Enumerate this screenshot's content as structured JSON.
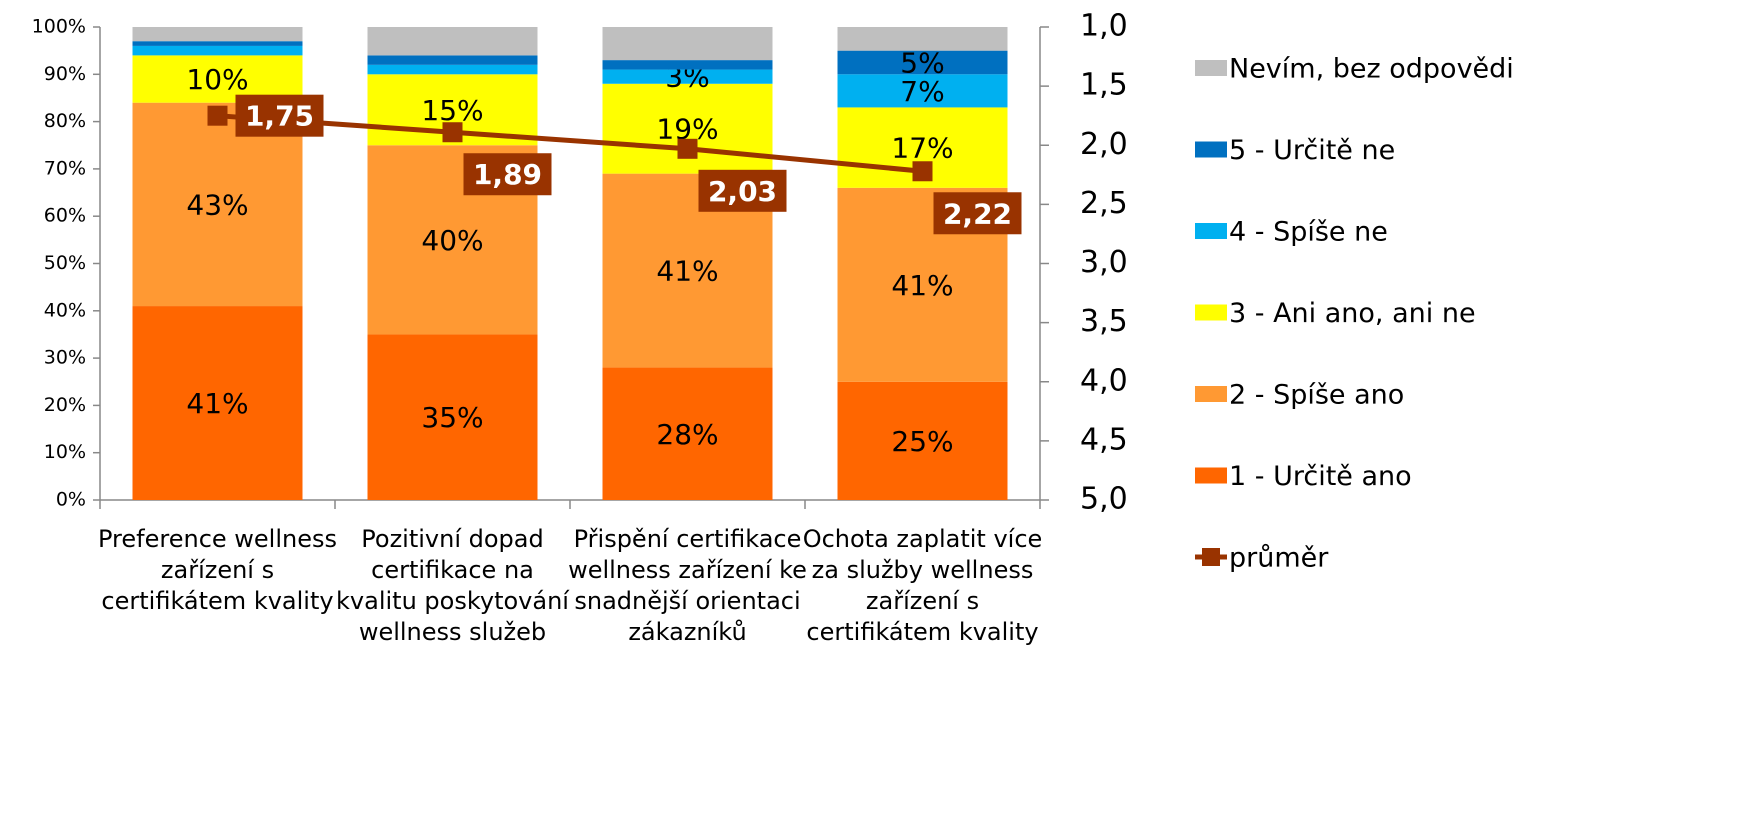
{
  "chart_data": {
    "type": "bar",
    "stacked": true,
    "categories": [
      "Preference wellness zařízení s certifikátem kvality",
      "Pozitivní dopad certifikace na kvalitu poskytování wellness služeb",
      "Přispění certifikace wellness zařízení ke snadnější orientaci zákazníků",
      "Ochota zaplatit více za služby wellness zařízení s certifikátem kvality"
    ],
    "series": [
      {
        "name": "1 - Určitě ano",
        "color": "#ff6600",
        "values": [
          41,
          35,
          28,
          25
        ],
        "value_labels": [
          "41%",
          "35%",
          "28%",
          "25%"
        ]
      },
      {
        "name": "2 - Spíše ano",
        "color": "#ff9933",
        "values": [
          43,
          40,
          41,
          41
        ],
        "value_labels": [
          "43%",
          "40%",
          "41%",
          "41%"
        ]
      },
      {
        "name": "3 - Ani ano, ani ne",
        "color": "#ffff00",
        "values": [
          10,
          15,
          19,
          17
        ],
        "value_labels": [
          "10%",
          "15%",
          "19%",
          "17%"
        ]
      },
      {
        "name": "4 - Spíše ne",
        "color": "#00b0f0",
        "values": [
          2,
          2,
          3,
          7
        ],
        "value_labels": [
          null,
          null,
          "3%",
          "7%"
        ]
      },
      {
        "name": "5 - Určitě ne",
        "color": "#0070c0",
        "values": [
          1,
          2,
          2,
          5
        ],
        "value_labels": [
          null,
          null,
          null,
          "5%"
        ]
      },
      {
        "name": "Nevím, bez odpovědi",
        "color": "#bfbfbf",
        "values": [
          3,
          6,
          7,
          5
        ]
      },
      {
        "name": "průměr",
        "type": "line",
        "axis": "y2",
        "color": "#993300",
        "values": [
          1.75,
          1.89,
          2.03,
          2.22
        ],
        "value_labels": [
          "1,75",
          "1,89",
          "2,03",
          "2,22"
        ]
      }
    ],
    "ylim": [
      0,
      100
    ],
    "yticks": [
      {
        "value": 0,
        "label": "0%"
      },
      {
        "value": 10,
        "label": "10%"
      },
      {
        "value": 20,
        "label": "20%"
      },
      {
        "value": 30,
        "label": "30%"
      },
      {
        "value": 40,
        "label": "40%"
      },
      {
        "value": 50,
        "label": "50%"
      },
      {
        "value": 60,
        "label": "60%"
      },
      {
        "value": 70,
        "label": "70%"
      },
      {
        "value": 80,
        "label": "80%"
      },
      {
        "value": 90,
        "label": "90%"
      },
      {
        "value": 100,
        "label": "100%"
      }
    ],
    "y2lim": [
      1,
      5
    ],
    "y2_inverted": true,
    "y2ticks": [
      {
        "value": 1,
        "label": "1,0"
      },
      {
        "value": 1.5,
        "label": "1,5"
      },
      {
        "value": 2,
        "label": "2,0"
      },
      {
        "value": 2.5,
        "label": "2,5"
      },
      {
        "value": 3,
        "label": "3,0"
      },
      {
        "value": 3.5,
        "label": "3,5"
      },
      {
        "value": 4,
        "label": "4,0"
      },
      {
        "value": 4.5,
        "label": "4,5"
      },
      {
        "value": 5,
        "label": "5,0"
      }
    ],
    "legend": "right",
    "grid": false
  }
}
